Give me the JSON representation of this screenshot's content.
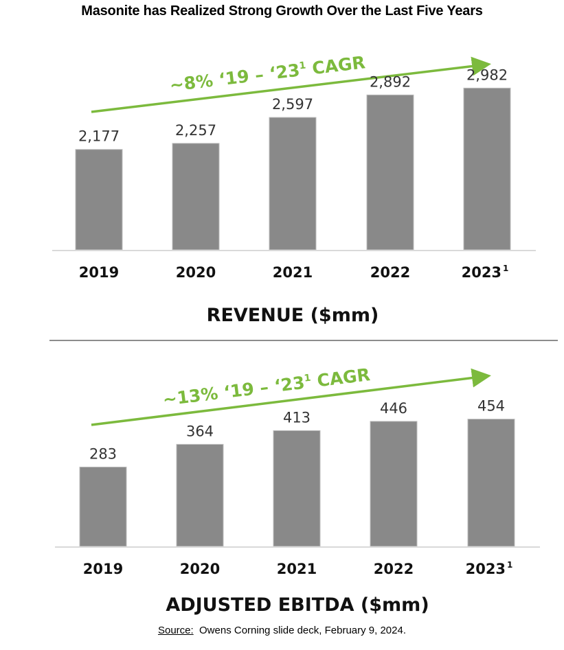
{
  "page": {
    "title": "Masonite has Realized Strong Growth Over the Last Five Years",
    "source_label": "Source:",
    "source_text": "Owens Corning slide deck, February 9, 2024."
  },
  "colors": {
    "bar": "#898989",
    "accent_green": "#7cba3d",
    "axis": "#d9d9d9",
    "divider": "#8c8c8c"
  },
  "chart_data": [
    {
      "type": "bar",
      "title": "REVENUE ($mm)",
      "annotation": {
        "text": "~8% ‘19 – ‘23",
        "superscript": "1",
        "suffix": " CAGR"
      },
      "categories": [
        "2019",
        "2020",
        "2021",
        "2022",
        "2023"
      ],
      "category_superscripts": [
        "",
        "",
        "",
        "",
        "1"
      ],
      "values": [
        2177,
        2257,
        2597,
        2892,
        2982
      ],
      "value_labels": [
        "2,177",
        "2,257",
        "2,597",
        "2,892",
        "2,982"
      ],
      "xlabel": "",
      "ylabel": "",
      "ylim": [
        860,
        3300
      ],
      "grid": false
    },
    {
      "type": "bar",
      "title": "ADJUSTED EBITDA ($mm)",
      "annotation": {
        "text": "~13% ‘19 – ‘23",
        "superscript": "1",
        "suffix": " CAGR"
      },
      "categories": [
        "2019",
        "2020",
        "2021",
        "2022",
        "2023"
      ],
      "category_superscripts": [
        "",
        "",
        "",
        "",
        "1"
      ],
      "values": [
        283,
        364,
        413,
        446,
        454
      ],
      "value_labels": [
        "283",
        "364",
        "413",
        "446",
        "454"
      ],
      "xlabel": "",
      "ylabel": "",
      "ylim": [
        0,
        600
      ],
      "grid": false
    }
  ]
}
